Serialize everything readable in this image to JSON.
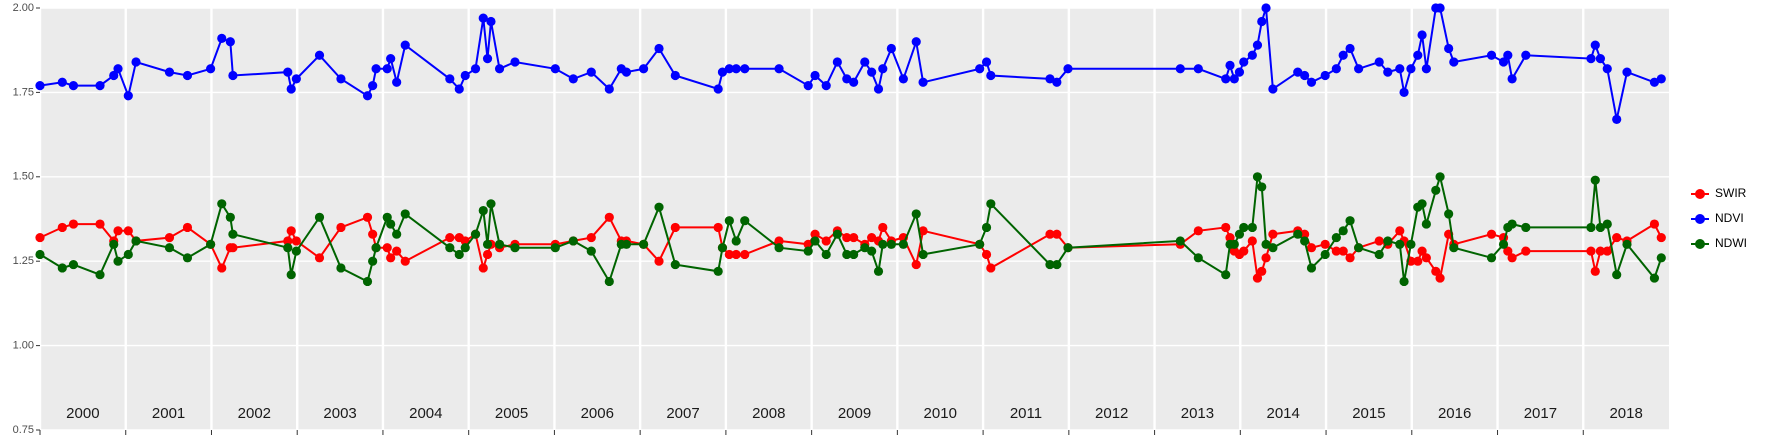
{
  "chart_data": {
    "type": "line",
    "x": [
      2000.0,
      2000.26,
      2000.39,
      2000.7,
      2000.86,
      2000.91,
      2001.03,
      2001.12,
      2001.51,
      2001.72,
      2001.99,
      2002.12,
      2002.22,
      2002.25,
      2002.89,
      2002.93,
      2002.99,
      2003.26,
      2003.51,
      2003.82,
      2003.88,
      2003.92,
      2004.05,
      2004.09,
      2004.16,
      2004.26,
      2004.78,
      2004.89,
      2004.96,
      2005.08,
      2005.17,
      2005.22,
      2005.26,
      2005.36,
      2005.54,
      2006.01,
      2006.22,
      2006.43,
      2006.64,
      2006.78,
      2006.84,
      2007.04,
      2007.22,
      2007.41,
      2007.91,
      2007.96,
      2008.04,
      2008.12,
      2008.22,
      2008.62,
      2008.96,
      2009.04,
      2009.17,
      2009.3,
      2009.41,
      2009.49,
      2009.62,
      2009.7,
      2009.78,
      2009.83,
      2009.93,
      2010.07,
      2010.22,
      2010.3,
      2010.96,
      2011.04,
      2011.09,
      2011.78,
      2011.86,
      2011.99,
      2013.3,
      2013.51,
      2013.83,
      2013.88,
      2013.93,
      2013.99,
      2014.04,
      2014.14,
      2014.2,
      2014.25,
      2014.3,
      2014.38,
      2014.67,
      2014.75,
      2014.83,
      2014.99,
      2015.12,
      2015.2,
      2015.28,
      2015.38,
      2015.62,
      2015.72,
      2015.86,
      2015.91,
      2015.99,
      2016.07,
      2016.12,
      2016.17,
      2016.28,
      2016.33,
      2016.43,
      2016.49,
      2016.93,
      2017.07,
      2017.12,
      2017.17,
      2017.33,
      2018.09,
      2018.14,
      2018.2,
      2018.28,
      2018.39,
      2018.51,
      2018.83,
      2018.91
    ],
    "series": [
      {
        "name": "SWIR",
        "color": "#ff0000",
        "values": [
          1.32,
          1.35,
          1.36,
          1.36,
          1.31,
          1.34,
          1.34,
          1.31,
          1.32,
          1.35,
          1.3,
          1.23,
          1.29,
          1.29,
          1.31,
          1.34,
          1.31,
          1.26,
          1.35,
          1.38,
          1.33,
          1.29,
          1.29,
          1.26,
          1.28,
          1.25,
          1.32,
          1.32,
          1.31,
          1.33,
          1.23,
          1.27,
          1.3,
          1.29,
          1.3,
          1.3,
          1.31,
          1.32,
          1.38,
          1.31,
          1.31,
          1.3,
          1.25,
          1.35,
          1.35,
          1.29,
          1.27,
          1.27,
          1.27,
          1.31,
          1.3,
          1.33,
          1.31,
          1.34,
          1.32,
          1.32,
          1.3,
          1.32,
          1.31,
          1.35,
          1.31,
          1.32,
          1.24,
          1.34,
          1.3,
          1.27,
          1.23,
          1.33,
          1.33,
          1.29,
          1.3,
          1.34,
          1.35,
          1.32,
          1.28,
          1.27,
          1.28,
          1.31,
          1.2,
          1.22,
          1.26,
          1.33,
          1.34,
          1.33,
          1.29,
          1.3,
          1.28,
          1.28,
          1.26,
          1.29,
          1.31,
          1.3,
          1.34,
          1.31,
          1.25,
          1.25,
          1.28,
          1.26,
          1.22,
          1.2,
          1.33,
          1.3,
          1.33,
          1.32,
          1.28,
          1.26,
          1.28,
          1.28,
          1.22,
          1.28,
          1.28,
          1.32,
          1.31,
          1.36,
          1.32
        ]
      },
      {
        "name": "NDVI",
        "color": "#0000ff",
        "values": [
          1.77,
          1.78,
          1.77,
          1.77,
          1.8,
          1.82,
          1.74,
          1.84,
          1.81,
          1.8,
          1.82,
          1.91,
          1.9,
          1.8,
          1.81,
          1.76,
          1.79,
          1.86,
          1.79,
          1.74,
          1.77,
          1.82,
          1.82,
          1.85,
          1.78,
          1.89,
          1.79,
          1.76,
          1.8,
          1.82,
          1.97,
          1.85,
          1.96,
          1.82,
          1.84,
          1.82,
          1.79,
          1.81,
          1.76,
          1.82,
          1.81,
          1.82,
          1.88,
          1.8,
          1.76,
          1.81,
          1.82,
          1.82,
          1.82,
          1.82,
          1.77,
          1.8,
          1.77,
          1.84,
          1.79,
          1.78,
          1.84,
          1.81,
          1.76,
          1.82,
          1.88,
          1.79,
          1.9,
          1.78,
          1.82,
          1.84,
          1.8,
          1.79,
          1.78,
          1.82,
          1.82,
          1.82,
          1.79,
          1.83,
          1.79,
          1.81,
          1.84,
          1.86,
          1.89,
          1.96,
          2.0,
          1.76,
          1.81,
          1.8,
          1.78,
          1.8,
          1.82,
          1.86,
          1.88,
          1.82,
          1.84,
          1.81,
          1.82,
          1.75,
          1.82,
          1.86,
          1.92,
          1.82,
          2.0,
          2.0,
          1.88,
          1.84,
          1.86,
          1.84,
          1.86,
          1.79,
          1.86,
          1.85,
          1.89,
          1.85,
          1.82,
          1.67,
          1.81,
          1.78,
          1.79
        ]
      },
      {
        "name": "NDWI",
        "color": "#006400",
        "values": [
          1.27,
          1.23,
          1.24,
          1.21,
          1.3,
          1.25,
          1.27,
          1.31,
          1.29,
          1.26,
          1.3,
          1.42,
          1.38,
          1.33,
          1.29,
          1.21,
          1.28,
          1.38,
          1.23,
          1.19,
          1.25,
          1.29,
          1.38,
          1.36,
          1.33,
          1.39,
          1.29,
          1.27,
          1.29,
          1.33,
          1.4,
          1.3,
          1.42,
          1.3,
          1.29,
          1.29,
          1.31,
          1.28,
          1.19,
          1.3,
          1.3,
          1.3,
          1.41,
          1.24,
          1.22,
          1.29,
          1.37,
          1.31,
          1.37,
          1.29,
          1.28,
          1.31,
          1.27,
          1.33,
          1.27,
          1.27,
          1.29,
          1.28,
          1.22,
          1.3,
          1.3,
          1.3,
          1.39,
          1.27,
          1.3,
          1.35,
          1.42,
          1.24,
          1.24,
          1.29,
          1.31,
          1.26,
          1.21,
          1.3,
          1.3,
          1.33,
          1.35,
          1.35,
          1.5,
          1.47,
          1.3,
          1.29,
          1.33,
          1.31,
          1.23,
          1.27,
          1.32,
          1.34,
          1.37,
          1.29,
          1.27,
          1.31,
          1.3,
          1.19,
          1.3,
          1.41,
          1.42,
          1.36,
          1.46,
          1.5,
          1.39,
          1.29,
          1.26,
          1.3,
          1.35,
          1.36,
          1.35,
          1.35,
          1.49,
          1.35,
          1.36,
          1.21,
          1.3,
          1.2,
          1.26
        ]
      }
    ],
    "xlim": [
      2000,
      2019
    ],
    "xticks": [
      2000,
      2001,
      2002,
      2003,
      2004,
      2005,
      2006,
      2007,
      2008,
      2009,
      2010,
      2011,
      2012,
      2013,
      2014,
      2015,
      2016,
      2017,
      2018
    ],
    "ylim": [
      0.75,
      2.0
    ],
    "yticks": [
      0.75,
      {
        "value": 1.0,
        "label": "1.00"
      },
      1.25,
      {
        "value": 1.5,
        "label": "1.50"
      },
      1.75,
      {
        "value": 2.0,
        "label": "2.00"
      }
    ],
    "grid": true,
    "legend": "right"
  }
}
